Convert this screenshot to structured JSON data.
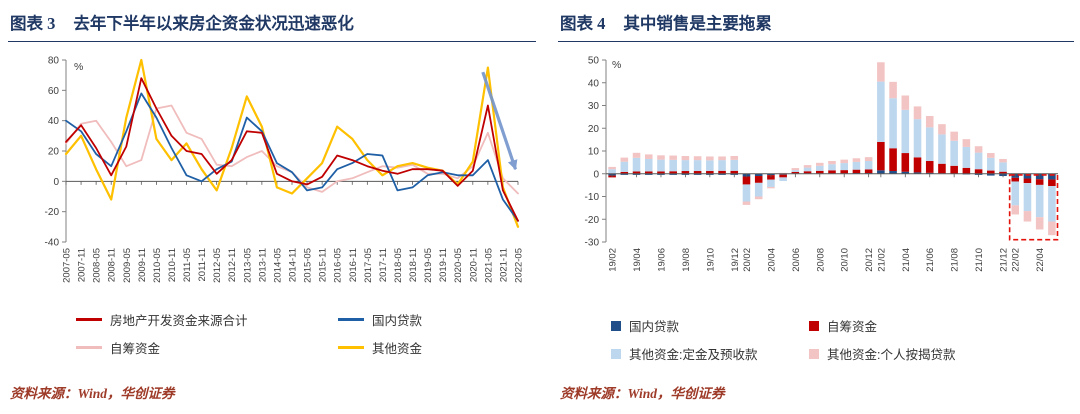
{
  "page": {
    "background": "#FFFFFF",
    "accent_color": "#1F3864"
  },
  "panels": [
    {
      "id": "figure-3",
      "label": "图表 3",
      "title": "去年下半年以来房企资金状况迅速恶化",
      "source": "资料来源：Wind，华创证券"
    },
    {
      "id": "figure-4",
      "label": "图表 4",
      "title": "其中销售是主要拖累",
      "source": "资料来源：Wind，华创证券"
    }
  ],
  "chart_data": [
    {
      "type": "line",
      "title": "去年下半年以来房企资金状况迅速恶化",
      "unit": "%",
      "ylim": [
        -40,
        80
      ],
      "yticks": [
        80,
        60,
        40,
        20,
        0,
        -20,
        -40
      ],
      "grid": false,
      "legend_position": "bottom",
      "x": [
        "2007-05",
        "2007-11",
        "2008-05",
        "2008-11",
        "2009-05",
        "2009-11",
        "2010-05",
        "2010-11",
        "2011-05",
        "2011-11",
        "2012-05",
        "2012-11",
        "2013-05",
        "2013-11",
        "2014-05",
        "2014-11",
        "2015-05",
        "2015-11",
        "2016-05",
        "2016-11",
        "2017-05",
        "2017-11",
        "2018-05",
        "2018-11",
        "2019-05",
        "2019-11",
        "2020-05",
        "2020-11",
        "2021-05",
        "2021-11",
        "2022-05"
      ],
      "series": [
        {
          "name": "房地产开发资金来源合计",
          "color": "#C00000",
          "values": [
            26,
            37,
            22,
            4,
            23,
            68,
            48,
            30,
            20,
            18,
            5,
            14,
            33,
            32,
            5,
            0,
            -2,
            3,
            17,
            14,
            10,
            7,
            5,
            8,
            8,
            7,
            -3,
            7,
            50,
            -6,
            -26
          ]
        },
        {
          "name": "国内贷款",
          "color": "#1F5FA6",
          "values": [
            40,
            33,
            18,
            10,
            33,
            58,
            42,
            22,
            4,
            0,
            8,
            13,
            42,
            33,
            12,
            6,
            -6,
            -4,
            8,
            12,
            18,
            17,
            -6,
            -4,
            4,
            6,
            4,
            4,
            14,
            -12,
            -26
          ]
        },
        {
          "name": "自筹资金",
          "color": "#F0BCBC",
          "values": [
            25,
            38,
            40,
            26,
            10,
            14,
            48,
            50,
            32,
            28,
            11,
            10,
            16,
            20,
            10,
            6,
            -4,
            -7,
            0,
            2,
            6,
            10,
            9,
            11,
            5,
            5,
            2,
            10,
            32,
            2,
            -8
          ]
        },
        {
          "name": "其他资金",
          "color": "#FFC000",
          "width": 2.2,
          "values": [
            18,
            30,
            8,
            -12,
            42,
            80,
            28,
            14,
            25,
            8,
            -6,
            22,
            56,
            36,
            -4,
            -8,
            2,
            12,
            36,
            28,
            14,
            4,
            10,
            12,
            9,
            7,
            -2,
            13,
            75,
            -4,
            -30
          ]
        }
      ],
      "annotation": {
        "type": "arrow",
        "from": {
          "x": "2021-03",
          "y": 72
        },
        "to": {
          "x": "2022-04",
          "y": 8
        },
        "color": "#7394CC"
      }
    },
    {
      "type": "stacked-bar",
      "title": "其中销售是主要拖累",
      "unit": "%",
      "ylim": [
        -30,
        50
      ],
      "yticks": [
        50,
        40,
        30,
        20,
        10,
        0,
        -10,
        -20,
        -30
      ],
      "grid": false,
      "legend_position": "bottom",
      "x": [
        "19/02",
        "19/03",
        "19/04",
        "19/05",
        "19/06",
        "19/07",
        "19/08",
        "19/09",
        "19/10",
        "19/11",
        "19/12",
        "20/02",
        "20/03",
        "20/04",
        "20/05",
        "20/06",
        "20/07",
        "20/08",
        "20/09",
        "20/10",
        "20/11",
        "20/12",
        "21/02",
        "21/03",
        "21/04",
        "21/05",
        "21/06",
        "21/07",
        "21/08",
        "21/09",
        "21/10",
        "21/11",
        "21/12",
        "22/02",
        "22/03",
        "22/04",
        "22/05"
      ],
      "x_tick_labels": [
        "19/02",
        "19/04",
        "19/06",
        "19/08",
        "19/10",
        "19/12",
        "20/02",
        "20/04",
        "20/06",
        "20/08",
        "20/10",
        "20/12",
        "21/02",
        "21/04",
        "21/06",
        "21/08",
        "21/10",
        "21/12",
        "22/02",
        "22/04"
      ],
      "series": [
        {
          "name": "国内贷款",
          "color": "#1F4E89",
          "values": [
            -0.8,
            -0.5,
            -0.5,
            -0.5,
            -0.5,
            -0.5,
            -0.5,
            -0.5,
            -0.5,
            -0.5,
            -0.5,
            -1.2,
            -1.0,
            -0.6,
            -0.4,
            0.2,
            0.2,
            0.2,
            0.2,
            0.2,
            0.3,
            0.3,
            1.5,
            1.2,
            0.9,
            0.6,
            0.4,
            0.2,
            0.1,
            -0.3,
            -0.5,
            -0.8,
            -1.0,
            -1.8,
            -2.1,
            -2.4,
            -2.5
          ]
        },
        {
          "name": "自筹资金",
          "color": "#C00000",
          "values": [
            -0.8,
            0.8,
            1.0,
            1.0,
            1.0,
            1.1,
            1.2,
            1.2,
            1.2,
            1.3,
            1.3,
            -3.5,
            -3.0,
            -2.0,
            -1.2,
            0.6,
            0.9,
            1.1,
            1.3,
            1.4,
            1.5,
            1.6,
            12.5,
            10.0,
            8.2,
            6.6,
            5.2,
            4.2,
            3.4,
            2.6,
            2.0,
            1.4,
            0.9,
            -1.6,
            -2.0,
            -2.5,
            -2.9
          ]
        },
        {
          "name": "其他资金:定金及预收款",
          "color": "#BDD7EE",
          "values": [
            2.0,
            4.5,
            6.0,
            5.5,
            5.2,
            5.0,
            4.8,
            4.8,
            4.7,
            4.7,
            4.8,
            -7.5,
            -6.0,
            -3.2,
            -1.6,
            0.8,
            1.6,
            2.2,
            2.7,
            3.1,
            3.4,
            3.7,
            26.5,
            22.0,
            19.0,
            16.8,
            14.8,
            12.9,
            11.0,
            9.2,
            7.3,
            5.6,
            4.1,
            -10.5,
            -12.3,
            -14.2,
            -15.6
          ]
        },
        {
          "name": "其他资金:个人按揭贷款",
          "color": "#F2C4C4",
          "values": [
            1.0,
            1.8,
            2.2,
            2.0,
            1.9,
            1.9,
            1.8,
            1.7,
            1.7,
            1.6,
            1.7,
            -1.5,
            -1.2,
            -0.6,
            0.4,
            0.9,
            1.1,
            1.3,
            1.4,
            1.5,
            1.6,
            1.7,
            8.5,
            7.2,
            6.3,
            5.6,
            5.0,
            4.5,
            4.0,
            3.4,
            2.8,
            2.1,
            1.5,
            -4.0,
            -4.6,
            -5.4,
            -6.0
          ]
        }
      ],
      "highlight_box": {
        "x_from": "22/02",
        "x_to": "22/05",
        "y_from": -0.5,
        "y_to": -29,
        "color": "#E3120B"
      }
    }
  ]
}
